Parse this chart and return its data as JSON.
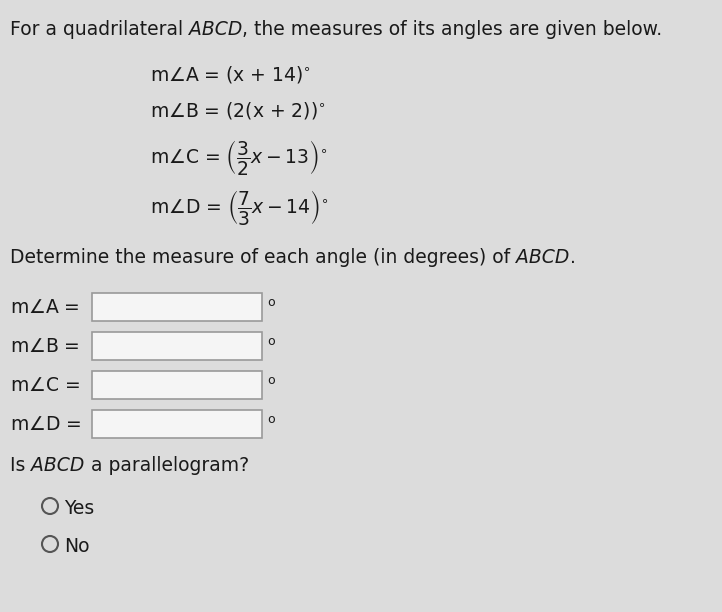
{
  "bg_color": "#dcdcdc",
  "box_color": "#f5f5f5",
  "box_border": "#999999",
  "text_color": "#1a1a1a",
  "fig_w": 7.22,
  "fig_h": 6.12,
  "dpi": 100,
  "title_line": "For a quadrilateral ABCD, the measures of its angles are given below.",
  "eq_A": "m∠A = (x + 14)°",
  "eq_B": "m∠B = (2(x + 2))°",
  "determine_line": "Determine the measure of each angle (in degrees) of ABCD.",
  "angle_labels": [
    "m∠A =",
    "m∠B =",
    "m∠C =",
    "m∠D ="
  ],
  "para_q": "Is ABCD a parallelogram?",
  "yes_label": "Yes",
  "no_label": "No",
  "font_size": 13.5
}
